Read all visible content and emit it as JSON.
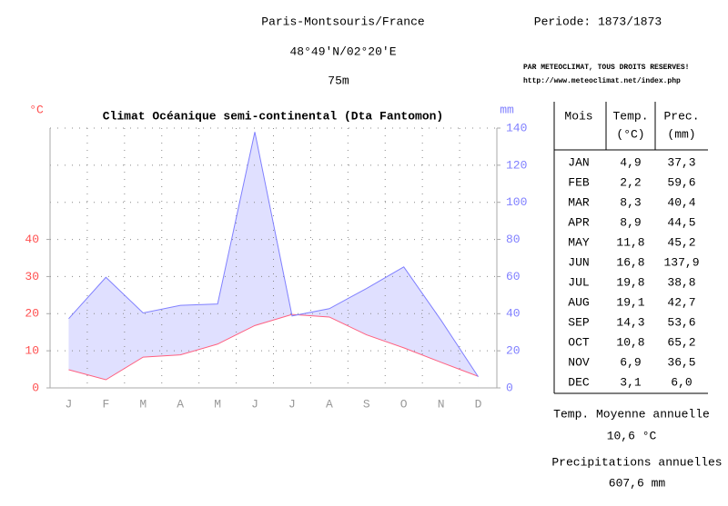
{
  "header": {
    "station": "Paris-Montsouris/France",
    "coords": "48°49'N/02°20'E",
    "altitude": "75m",
    "period": "Periode: 1873/1873",
    "copyright": "PAR METEOCLIMAT, TOUS DROITS RESERVES!",
    "url": "http://www.meteoclimat.net/index.php"
  },
  "chart_data": {
    "type": "line",
    "title": "Climat Océanique semi-continental (Dta Fantomon)",
    "y_label": "°C",
    "y2_label": "mm",
    "categories": [
      "J",
      "F",
      "M",
      "A",
      "M",
      "J",
      "J",
      "A",
      "S",
      "O",
      "N",
      "D"
    ],
    "series": [
      {
        "name": "Temp.",
        "color": "#ff6080",
        "values": [
          4.9,
          2.2,
          8.3,
          8.9,
          11.8,
          16.8,
          19.8,
          19.1,
          14.3,
          10.8,
          6.9,
          3.1
        ]
      },
      {
        "name": "Prec.",
        "color": "#8080ff",
        "fill": "#e0e0ff",
        "axis": "y2",
        "values": [
          37.3,
          59.6,
          40.4,
          44.5,
          45.2,
          137.9,
          38.8,
          42.7,
          53.6,
          65.2,
          36.5,
          6.0
        ]
      }
    ],
    "ylim": [
      0,
      70
    ],
    "yticks": [
      0,
      10,
      20,
      30,
      40
    ],
    "y2lim": [
      0,
      140
    ],
    "y2ticks": [
      0,
      20,
      40,
      60,
      80,
      100,
      120,
      140
    ],
    "grid": true
  },
  "table": {
    "header": [
      "Mois",
      "Temp.",
      "(°C)",
      "Prec.",
      "(mm)"
    ],
    "rows": [
      [
        "JAN",
        "4,9",
        "37,3"
      ],
      [
        "FEB",
        "2,2",
        "59,6"
      ],
      [
        "MAR",
        "8,3",
        "40,4"
      ],
      [
        "APR",
        "8,9",
        "44,5"
      ],
      [
        "MAY",
        "11,8",
        "45,2"
      ],
      [
        "JUN",
        "16,8",
        "137,9"
      ],
      [
        "JUL",
        "19,8",
        "38,8"
      ],
      [
        "AUG",
        "19,1",
        "42,7"
      ],
      [
        "SEP",
        "14,3",
        "53,6"
      ],
      [
        "OCT",
        "10,8",
        "65,2"
      ],
      [
        "NOV",
        "6,9",
        "36,5"
      ],
      [
        "DEC",
        "3,1",
        "6,0"
      ]
    ]
  },
  "footer": {
    "temp_label": "Temp. Moyenne annuelle",
    "temp_value": "10,6 °C",
    "prec_label": "Precipitations annuelles",
    "prec_value": "607,6 mm"
  }
}
